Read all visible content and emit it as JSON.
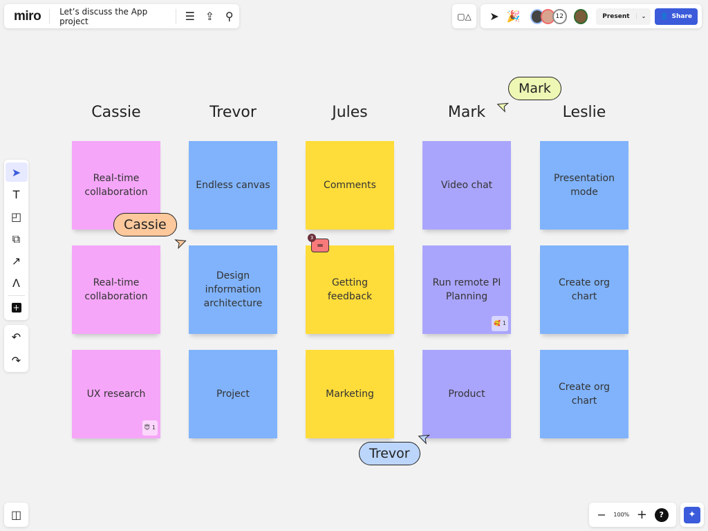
{
  "header": {
    "logo": "miro",
    "board_title": "Let’s discuss the App project",
    "icons": [
      "menu-icon",
      "upload-icon",
      "search-icon"
    ]
  },
  "top_right": {
    "collaborator_count": "12",
    "present_label": "Present",
    "share_label": "Share",
    "accent": "#3b5bdb"
  },
  "columns": [
    {
      "name": "Cassie",
      "color": "#f5a6f8",
      "notes": [
        {
          "text": "Real-time collaboration"
        },
        {
          "text": "Real-time collaboration"
        },
        {
          "text": "UX research",
          "reaction": "😇",
          "count": "1"
        }
      ]
    },
    {
      "name": "Trevor",
      "color": "#80b3fb",
      "notes": [
        {
          "text": "Endless canvas"
        },
        {
          "text": "Design information architecture"
        },
        {
          "text": "Project"
        }
      ]
    },
    {
      "name": "Jules",
      "color": "#fedc3a",
      "notes": [
        {
          "text": "Comments"
        },
        {
          "text": "Getting feedback"
        },
        {
          "text": "Marketing"
        }
      ]
    },
    {
      "name": "Mark",
      "color": "#aaa5fc",
      "notes": [
        {
          "text": "Video chat"
        },
        {
          "text": "Run remote PI Planning",
          "reaction": "🥰",
          "count": "1"
        },
        {
          "text": "Product"
        }
      ]
    },
    {
      "name": "Leslie",
      "color": "#80b3fb",
      "notes": [
        {
          "text": "Presentation mode"
        },
        {
          "text": "Create org chart"
        },
        {
          "text": "Create org chart"
        }
      ]
    }
  ],
  "comment_badge": {
    "count": "3"
  },
  "cursors": [
    {
      "name": "Mark",
      "color": "#eef7b4"
    },
    {
      "name": "Cassie",
      "color": "#fcc89c"
    },
    {
      "name": "Trevor",
      "color": "#bcd6fb"
    }
  ],
  "zoom": {
    "level": "100%",
    "help": "?"
  }
}
